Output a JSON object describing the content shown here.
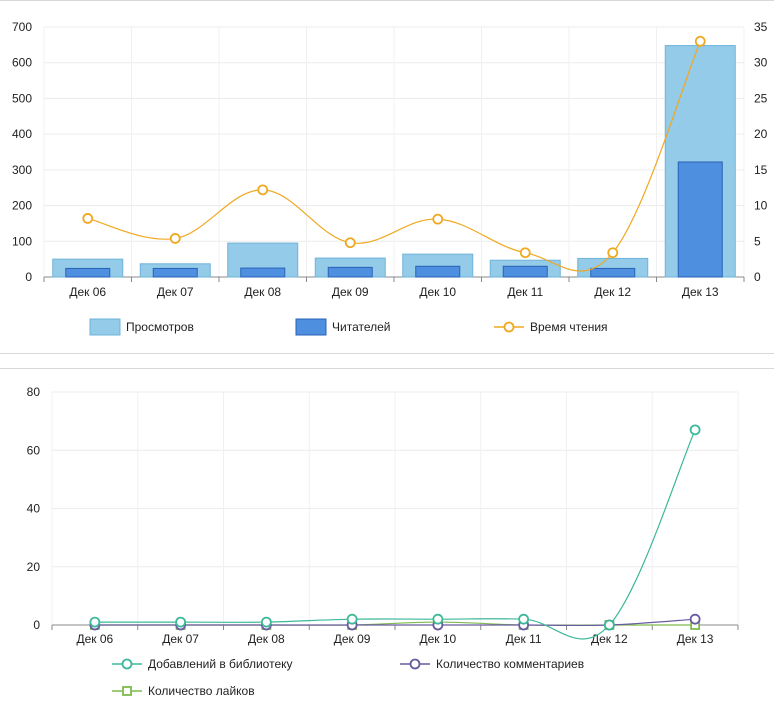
{
  "chart_data": [
    {
      "type": "bar",
      "categories": [
        "Дек 06",
        "Дек 07",
        "Дек 08",
        "Дек 09",
        "Дек 10",
        "Дек 11",
        "Дек 12",
        "Дек 13"
      ],
      "series": [
        {
          "name": "Просмотров",
          "type": "bar",
          "axis": "left",
          "color": "#93cbe8",
          "values": [
            50,
            37,
            95,
            53,
            64,
            47,
            52,
            648
          ]
        },
        {
          "name": "Читателей",
          "type": "bar",
          "axis": "left",
          "color": "#4e8fe0",
          "values": [
            24,
            24,
            25,
            27,
            30,
            30,
            24,
            322
          ]
        },
        {
          "name": "Время чтения",
          "type": "line",
          "axis": "right",
          "color": "#f0a820",
          "values": [
            8.2,
            5.4,
            12.2,
            4.8,
            8.1,
            3.4,
            3.4,
            33
          ]
        }
      ],
      "ylim": [
        0,
        700
      ],
      "y_ticks": [
        "0",
        "100",
        "200",
        "300",
        "400",
        "500",
        "600",
        "700"
      ],
      "y2lim": [
        0,
        35
      ],
      "y2_ticks": [
        "0",
        "5",
        "10",
        "15",
        "20",
        "25",
        "30",
        "35"
      ],
      "grid": true,
      "legend_position": "bottom"
    },
    {
      "type": "line",
      "categories": [
        "Дек 06",
        "Дек 07",
        "Дек 08",
        "Дек 09",
        "Дек 10",
        "Дек 11",
        "Дек 12",
        "Дек 13"
      ],
      "series": [
        {
          "name": "Добавлений в библиотеку",
          "marker": "circle",
          "color": "#3db89a",
          "values": [
            1,
            1,
            1,
            2,
            2,
            2,
            0,
            67
          ]
        },
        {
          "name": "Количество комментариев",
          "marker": "circle",
          "color": "#6a5aa0",
          "values": [
            0,
            0,
            0,
            0,
            0,
            0,
            0,
            2
          ]
        },
        {
          "name": "Количество лайков",
          "marker": "square",
          "color": "#7dbb4e",
          "values": [
            0,
            0,
            0,
            0,
            1,
            0,
            0,
            0
          ]
        }
      ],
      "ylim": [
        0,
        80
      ],
      "y_ticks": [
        "0",
        "20",
        "40",
        "60",
        "80"
      ],
      "grid": true,
      "legend_position": "bottom"
    }
  ]
}
